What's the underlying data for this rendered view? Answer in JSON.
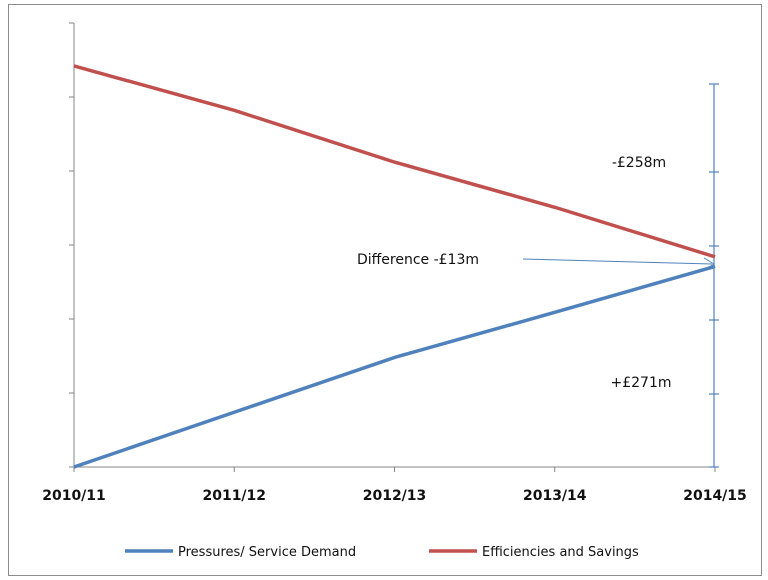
{
  "chart_data": {
    "type": "line",
    "categories": [
      "2010/11",
      "2011/12",
      "2012/13",
      "2013/14",
      "2014/15"
    ],
    "series": [
      {
        "name": "Pressures/ Service Demand",
        "color": "#4f81bd",
        "values": [
          0,
          74,
          148,
          209,
          271
        ]
      },
      {
        "name": "Efficiencies and Savings",
        "color": "#c0504d",
        "values": [
          542,
          482,
          412,
          351,
          284
        ]
      }
    ],
    "ylim": [
      0,
      600
    ],
    "grid": false,
    "legend": "bottom",
    "annotations": {
      "top_bracket": "-£258m",
      "bottom_bracket": "+£271m",
      "difference": "Difference -£13m"
    }
  }
}
